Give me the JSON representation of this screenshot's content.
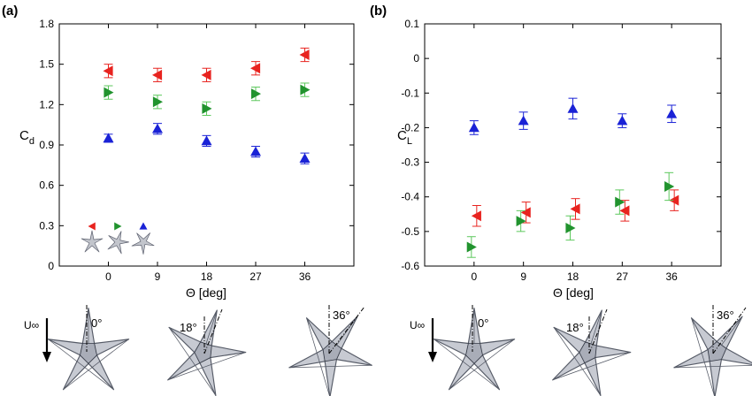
{
  "panels": {
    "a": {
      "label": "(a)"
    },
    "b": {
      "label": "(b)"
    }
  },
  "sketches": {
    "freestream_label": "U∞",
    "angles": [
      "0°",
      "18°",
      "36°"
    ]
  },
  "colors": {
    "red": "#e8231f",
    "green": "#21932e",
    "blue": "#1a22d6",
    "red_err": "#e8231f",
    "green_err": "#5cc85c",
    "blue_err": "#1a22d6",
    "star_fill": "#c7cad2",
    "star_edge": "#555a66"
  },
  "chart_data": [
    {
      "type": "scatter",
      "panel": "(a)",
      "xlabel": "Θ [deg]",
      "ylabel": "C_d",
      "ylabel_main": "C",
      "ylabel_sub": "d",
      "x": [
        0,
        9,
        18,
        27,
        36
      ],
      "xlim": [
        -9,
        45
      ],
      "ylim": [
        0,
        1.8
      ],
      "xticks": [
        "0",
        "9",
        "18",
        "27",
        "36"
      ],
      "yticks": [
        "0",
        "0.3",
        "0.6",
        "0.9",
        "1.2",
        "1.5",
        "1.8"
      ],
      "grid": false,
      "legend": "bottom-left, marker glyphs above star sketches",
      "series": [
        {
          "marker": "triangle-left",
          "color": "red",
          "values": [
            1.45,
            1.42,
            1.42,
            1.47,
            1.57
          ],
          "err": [
            0.05,
            0.05,
            0.05,
            0.05,
            0.05
          ]
        },
        {
          "marker": "triangle-right",
          "color": "green",
          "values": [
            1.29,
            1.22,
            1.17,
            1.28,
            1.31
          ],
          "err": [
            0.05,
            0.05,
            0.05,
            0.05,
            0.05
          ]
        },
        {
          "marker": "triangle-up",
          "color": "blue",
          "values": [
            0.95,
            1.02,
            0.93,
            0.85,
            0.8
          ],
          "err": [
            0.03,
            0.04,
            0.04,
            0.04,
            0.04
          ]
        }
      ]
    },
    {
      "type": "scatter",
      "panel": "(b)",
      "xlabel": "Θ [deg]",
      "ylabel": "C_L",
      "ylabel_main": "C",
      "ylabel_sub": "L",
      "x": [
        0,
        9,
        18,
        27,
        36
      ],
      "xlim": [
        -9,
        45
      ],
      "ylim": [
        -0.6,
        0.1
      ],
      "xticks": [
        "0",
        "9",
        "18",
        "27",
        "36"
      ],
      "yticks": [
        "-0.6",
        "-0.5",
        "-0.4",
        "-0.3",
        "-0.2",
        "-0.1",
        "0",
        "0.1"
      ],
      "grid": false,
      "series": [
        {
          "marker": "triangle-left",
          "color": "red",
          "values": [
            -0.455,
            -0.445,
            -0.435,
            -0.44,
            -0.41
          ],
          "err": [
            0.03,
            0.03,
            0.03,
            0.03,
            0.03
          ]
        },
        {
          "marker": "triangle-right",
          "color": "green",
          "values": [
            -0.545,
            -0.47,
            -0.49,
            -0.415,
            -0.37
          ],
          "err": [
            0.03,
            0.03,
            0.035,
            0.035,
            0.04
          ]
        },
        {
          "marker": "triangle-up",
          "color": "blue",
          "values": [
            -0.2,
            -0.18,
            -0.145,
            -0.18,
            -0.16
          ],
          "err": [
            0.02,
            0.025,
            0.03,
            0.02,
            0.025
          ]
        }
      ]
    }
  ]
}
